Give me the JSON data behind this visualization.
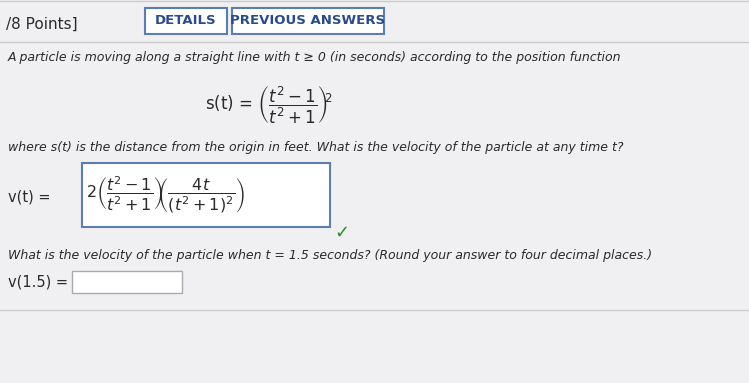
{
  "bg_color": "#f0f0f2",
  "header_points": "/8 Points]",
  "btn_details": "DETAILS",
  "btn_previous": "PREVIOUS ANSWERS",
  "line1": "A particle is moving along a straight line with ",
  "line1_t": "t ≥ 0",
  "line1_end": " (in seconds) according to the position function",
  "where_line": "where s(t) is the distance from the origin in feet. What is the velocity of the particle at any time ",
  "where_t": "t",
  "where_q": "?",
  "vt_label": "v(t) =",
  "what_line": "What is the velocity of the particle when ",
  "what_t": "t",
  "what_end": " = 1.5 seconds? (Round your answer to four decimal places.)",
  "v15_label": "v(1.5) =",
  "text_color": "#2a2a2a",
  "italic_color": "#2a2a2a",
  "btn_color": "#ffffff",
  "btn_border": "#5b7db1",
  "btn_text": "#2a4a8a",
  "box_border": "#5b7db1",
  "check_color": "#2d8a2d",
  "input_border": "#aaaaaa",
  "separator_color": "#cccccc"
}
